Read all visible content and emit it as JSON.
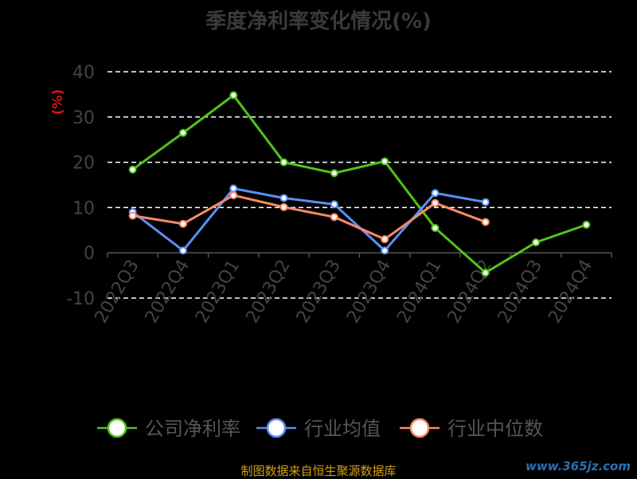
{
  "chart_data": {
    "type": "line",
    "title": "季度净利率变化情况(%)",
    "ylabel": "(%)",
    "xlabel": "",
    "ylim": [
      -10,
      40
    ],
    "yticks": [
      -10,
      0,
      10,
      20,
      30,
      40
    ],
    "grid": true,
    "legend_position": "bottom",
    "categories": [
      "2022Q3",
      "2022Q4",
      "2023Q1",
      "2023Q2",
      "2023Q3",
      "2023Q4",
      "2024Q1",
      "2024Q2",
      "2024Q3",
      "2024Q4"
    ],
    "series": [
      {
        "name": "公司净利率",
        "color": "#52c41a",
        "values": [
          18.4,
          26.5,
          34.8,
          20.0,
          17.6,
          20.2,
          5.5,
          -4.4,
          2.3,
          6.2
        ]
      },
      {
        "name": "行业均值",
        "color": "#5b8ff9",
        "values": [
          9.0,
          0.5,
          14.2,
          12.1,
          10.7,
          0.5,
          13.2,
          11.2,
          null,
          null
        ]
      },
      {
        "name": "行业中位数",
        "color": "#ff8a65",
        "values": [
          8.2,
          6.4,
          12.7,
          10.1,
          7.9,
          3.0,
          11.0,
          6.8,
          null,
          null
        ]
      }
    ]
  },
  "footer": "制图数据来自恒生聚源数据库",
  "watermark": "www.365jz.com"
}
